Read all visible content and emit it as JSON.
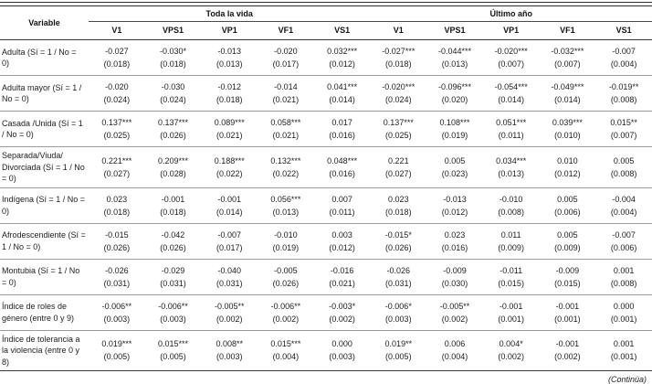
{
  "table": {
    "variable_header": "Variable",
    "group_headers": [
      {
        "label": "Toda la vida",
        "span": 5
      },
      {
        "label": "Último año",
        "span": 5
      }
    ],
    "column_headers": [
      "V1",
      "VPS1",
      "VP1",
      "VF1",
      "VS1",
      "V1",
      "VPS1",
      "VP1",
      "VF1",
      "VS1"
    ],
    "rows": [
      {
        "variable": "Adulta (Sí = 1 / No = 0)",
        "coef": [
          "-0.027",
          "-0.030*",
          "-0.013",
          "-0.020",
          "0.032***",
          "-0.027***",
          "-0.044***",
          "-0.020***",
          "-0.032***",
          "-0.007"
        ],
        "se": [
          "(0.018)",
          "(0.018)",
          "(0.013)",
          "(0.017)",
          "(0.012)",
          "(0.018)",
          "(0.013)",
          "(0.007)",
          "(0.007)",
          "(0.004)"
        ]
      },
      {
        "variable": "Adulta mayor (Sí = 1 / No = 0)",
        "coef": [
          "-0.020",
          "-0.030",
          "-0.012",
          "-0.014",
          "0.041***",
          "-0.020***",
          "-0.096***",
          "-0.054***",
          "-0.049***",
          "-0.019**"
        ],
        "se": [
          "(0.024)",
          "(0.024)",
          "(0.018)",
          "(0.021)",
          "(0.014)",
          "(0.024)",
          "(0.020)",
          "(0.014)",
          "(0.014)",
          "(0.008)"
        ]
      },
      {
        "variable": "Casada /Unida (Sí = 1 / No = 0)",
        "coef": [
          "0.137***",
          "0.137***",
          "0.089***",
          "0.058***",
          "0.017",
          "0.137***",
          "0.108***",
          "0.051***",
          "0.039***",
          "0.015**"
        ],
        "se": [
          "(0.025)",
          "(0.026)",
          "(0.021)",
          "(0.021)",
          "(0.016)",
          "(0.025)",
          "(0.019)",
          "(0.011)",
          "(0.010)",
          "(0.007)"
        ]
      },
      {
        "variable": "Separada/Viuda/ Divorciada (Sí = 1 / No = 0)",
        "coef": [
          "0.221***",
          "0.209***",
          "0.188***",
          "0.132***",
          "0.048***",
          "0.221",
          "0.005",
          "0.034***",
          "0.010",
          "0.005"
        ],
        "se": [
          "(0.027)",
          "(0.028)",
          "(0.022)",
          "(0.022)",
          "(0.016)",
          "(0.027)",
          "(0.023)",
          "(0.013)",
          "(0.012)",
          "(0.008)"
        ]
      },
      {
        "variable": "Indígena (Sí = 1 / No = 0)",
        "coef": [
          "0.023",
          "-0.001",
          "-0.001",
          "0.056***",
          "0.007",
          "0.023",
          "-0.013",
          "-0.010",
          "0.005",
          "-0.004"
        ],
        "se": [
          "(0.018)",
          "(0.018)",
          "(0.014)",
          "(0.013)",
          "(0.011)",
          "(0.018)",
          "(0.012)",
          "(0.008)",
          "(0.006)",
          "(0.004)"
        ]
      },
      {
        "variable": "Afrodescendiente (Sí = 1 / No = 0)",
        "coef": [
          "-0.015",
          "-0.042",
          "-0.007",
          "-0.010",
          "0.003",
          "-0.015*",
          "0.023",
          "0.011",
          "0.005",
          "-0.007"
        ],
        "se": [
          "(0.026)",
          "(0.026)",
          "(0.017)",
          "(0.019)",
          "(0.012)",
          "(0.026)",
          "(0.016)",
          "(0.009)",
          "(0.009)",
          "(0.006)"
        ]
      },
      {
        "variable": "Montubia (Sí = 1 / No = 0)",
        "coef": [
          "-0.026",
          "-0.029",
          "-0.040",
          "-0.005",
          "-0.016",
          "-0.026",
          "-0.009",
          "-0.011",
          "-0.009",
          "0.001"
        ],
        "se": [
          "(0.031)",
          "(0.031)",
          "(0.031)",
          "(0.026)",
          "(0.021)",
          "(0.031)",
          "(0.030)",
          "(0.015)",
          "(0.015)",
          "(0.008)"
        ]
      },
      {
        "variable": "Índice de roles de género (entre 0 y 9)",
        "coef": [
          "-0.006**",
          "-0.006**",
          "-0.005**",
          "-0.006**",
          "-0.003*",
          "-0.006*",
          "-0.005**",
          "-0.001",
          "-0.001",
          "0.000"
        ],
        "se": [
          "(0.003)",
          "(0.003)",
          "(0.002)",
          "(0.002)",
          "(0.002)",
          "(0.003)",
          "(0.002)",
          "(0.001)",
          "(0.001)",
          "(0.001)"
        ]
      },
      {
        "variable": "Índice de tolerancia a la violencia (entre 0 y 8)",
        "coef": [
          "0.019***",
          "0.015***",
          "0.008**",
          "0.015***",
          "0.000",
          "0.019**",
          "0.006",
          "0.004*",
          "-0.001",
          "0.001"
        ],
        "se": [
          "(0.005)",
          "(0.005)",
          "(0.003)",
          "(0.004)",
          "(0.003)",
          "(0.005)",
          "(0.004)",
          "(0.002)",
          "(0.002)",
          "(0.001)"
        ]
      }
    ],
    "footer_note": "(Continúa)"
  }
}
